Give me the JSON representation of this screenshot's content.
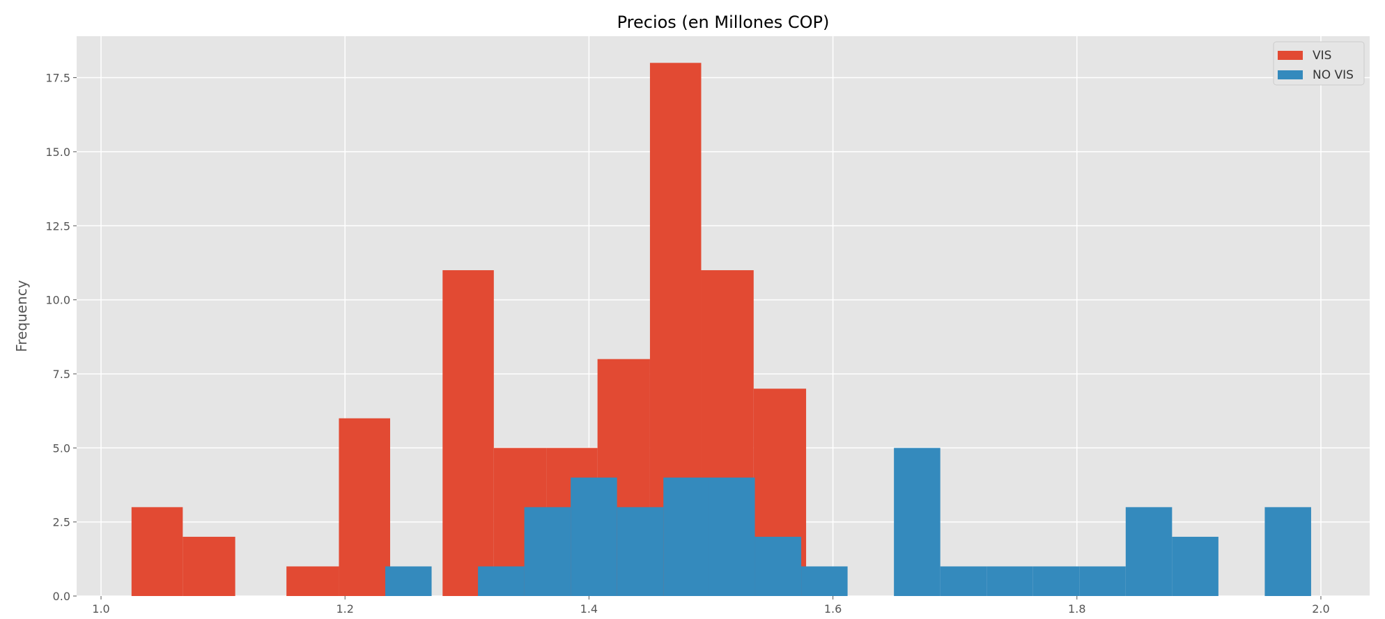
{
  "chart_data": {
    "type": "bar",
    "title": "Precios (en Millones COP)",
    "xlabel": "",
    "ylabel": "Frequency",
    "xlim": [
      0.98,
      2.04
    ],
    "ylim": [
      0,
      18.9
    ],
    "grid": true,
    "legend_position": "top-right",
    "x_ticks": [
      1.0,
      1.2,
      1.4,
      1.6,
      1.8,
      2.0
    ],
    "x_tick_labels": [
      "1.0",
      "1.2",
      "1.4",
      "1.6",
      "1.8",
      "2.0"
    ],
    "y_ticks": [
      0,
      2.5,
      5,
      7.5,
      10,
      12.5,
      15,
      17.5
    ],
    "y_tick_labels": [
      "0.0",
      "2.5",
      "5.0",
      "7.5",
      "10.0",
      "12.5",
      "15.0",
      "17.5"
    ],
    "series": [
      {
        "name": "VIS",
        "color": "#E24A33",
        "bin_edges": [
          1.025,
          1.067,
          1.11,
          1.152,
          1.195,
          1.237,
          1.28,
          1.322,
          1.365,
          1.407,
          1.45,
          1.492,
          1.535,
          1.578
        ],
        "counts": [
          3,
          2,
          0,
          1,
          6,
          0,
          11,
          5,
          5,
          8,
          18,
          11,
          7
        ]
      },
      {
        "name": "NO VIS",
        "color": "#348ABD",
        "bin_edges": [
          1.233,
          1.271,
          1.309,
          1.347,
          1.385,
          1.423,
          1.461,
          1.498,
          1.536,
          1.574,
          1.612,
          1.65,
          1.688,
          1.726,
          1.764,
          1.802,
          1.84,
          1.878,
          1.916,
          1.954,
          1.992
        ],
        "counts": [
          1,
          0,
          1,
          3,
          4,
          3,
          4,
          4,
          2,
          1,
          0,
          5,
          1,
          1,
          1,
          1,
          3,
          2,
          0,
          3
        ]
      }
    ]
  }
}
